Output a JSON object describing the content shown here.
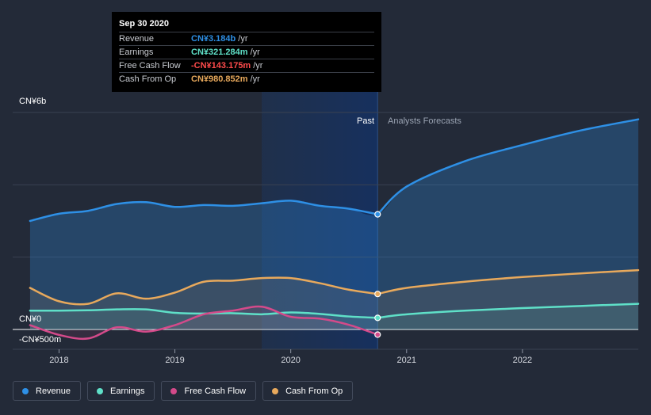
{
  "tooltip": {
    "date": "Sep 30 2020",
    "rows": [
      {
        "label": "Revenue",
        "value": "CN¥3.184b",
        "unit": "/yr",
        "color": "#2e90e6"
      },
      {
        "label": "Earnings",
        "value": "CN¥321.284m",
        "unit": "/yr",
        "color": "#5fe0c8"
      },
      {
        "label": "Free Cash Flow",
        "value": "-CN¥143.175m",
        "unit": "/yr",
        "color": "#ff4b4b"
      },
      {
        "label": "Cash From Op",
        "value": "CN¥980.852m",
        "unit": "/yr",
        "color": "#e8a95c"
      }
    ]
  },
  "regions": {
    "past": "Past",
    "forecast": "Analysts Forecasts"
  },
  "legend": [
    {
      "label": "Revenue",
      "color": "#2e90e6"
    },
    {
      "label": "Earnings",
      "color": "#5fe0c8"
    },
    {
      "label": "Free Cash Flow",
      "color": "#d44a8a"
    },
    {
      "label": "Cash From Op",
      "color": "#e8a95c"
    }
  ],
  "chart_data": {
    "type": "area",
    "title": "",
    "y_unit": "CN¥ millions",
    "ylim": [
      -500,
      6000
    ],
    "y_tick_labels": [
      {
        "value": 6000,
        "label": "CN¥6b"
      },
      {
        "value": 0,
        "label": "CN¥0"
      },
      {
        "value": -500,
        "label": "-CN¥500m"
      }
    ],
    "xlim": [
      2017.6,
      2023.0
    ],
    "x_tick_labels": [
      {
        "value": 2018,
        "label": "2018"
      },
      {
        "value": 2019,
        "label": "2019"
      },
      {
        "value": 2020,
        "label": "2020"
      },
      {
        "value": 2021,
        "label": "2021"
      },
      {
        "value": 2022,
        "label": "2022"
      }
    ],
    "highlight_range": [
      2019.75,
      2020.75
    ],
    "past_forecast_split": 2020.75,
    "series": [
      {
        "name": "Revenue",
        "color": "#2e90e6",
        "fill": true,
        "points": [
          [
            2017.75,
            3000
          ],
          [
            2018.0,
            3200
          ],
          [
            2018.25,
            3280
          ],
          [
            2018.5,
            3470
          ],
          [
            2018.75,
            3520
          ],
          [
            2019.0,
            3390
          ],
          [
            2019.25,
            3440
          ],
          [
            2019.5,
            3420
          ],
          [
            2019.75,
            3490
          ],
          [
            2020.0,
            3560
          ],
          [
            2020.25,
            3420
          ],
          [
            2020.5,
            3340
          ],
          [
            2020.75,
            3184
          ]
        ],
        "forecast": [
          [
            2020.75,
            3184
          ],
          [
            2021.0,
            3950
          ],
          [
            2021.5,
            4650
          ],
          [
            2022.0,
            5100
          ],
          [
            2022.5,
            5500
          ],
          [
            2023.0,
            5810
          ]
        ]
      },
      {
        "name": "Earnings",
        "color": "#5fe0c8",
        "fill": false,
        "points": [
          [
            2017.75,
            520
          ],
          [
            2018.0,
            520
          ],
          [
            2018.25,
            530
          ],
          [
            2018.5,
            555
          ],
          [
            2018.75,
            555
          ],
          [
            2019.0,
            460
          ],
          [
            2019.25,
            440
          ],
          [
            2019.5,
            450
          ],
          [
            2019.75,
            420
          ],
          [
            2020.0,
            470
          ],
          [
            2020.25,
            430
          ],
          [
            2020.5,
            360
          ],
          [
            2020.75,
            321
          ]
        ],
        "forecast": [
          [
            2020.75,
            321
          ],
          [
            2021.0,
            420
          ],
          [
            2021.5,
            520
          ],
          [
            2022.0,
            590
          ],
          [
            2022.5,
            650
          ],
          [
            2023.0,
            710
          ]
        ]
      },
      {
        "name": "Free Cash Flow",
        "color": "#d44a8a",
        "fill": false,
        "points": [
          [
            2017.75,
            120
          ],
          [
            2018.0,
            -150
          ],
          [
            2018.25,
            -250
          ],
          [
            2018.5,
            60
          ],
          [
            2018.75,
            -60
          ],
          [
            2019.0,
            120
          ],
          [
            2019.25,
            420
          ],
          [
            2019.5,
            520
          ],
          [
            2019.75,
            630
          ],
          [
            2020.0,
            350
          ],
          [
            2020.25,
            300
          ],
          [
            2020.5,
            130
          ],
          [
            2020.75,
            -143
          ]
        ],
        "forecast": []
      },
      {
        "name": "Cash From Op",
        "color": "#e8a95c",
        "fill": false,
        "points": [
          [
            2017.75,
            1150
          ],
          [
            2018.0,
            780
          ],
          [
            2018.25,
            710
          ],
          [
            2018.5,
            1000
          ],
          [
            2018.75,
            850
          ],
          [
            2019.0,
            1020
          ],
          [
            2019.25,
            1320
          ],
          [
            2019.5,
            1350
          ],
          [
            2019.75,
            1420
          ],
          [
            2020.0,
            1420
          ],
          [
            2020.25,
            1280
          ],
          [
            2020.5,
            1100
          ],
          [
            2020.75,
            981
          ]
        ],
        "forecast": [
          [
            2020.75,
            981
          ],
          [
            2021.0,
            1150
          ],
          [
            2021.5,
            1320
          ],
          [
            2022.0,
            1450
          ],
          [
            2022.5,
            1550
          ],
          [
            2023.0,
            1640
          ]
        ]
      }
    ]
  }
}
